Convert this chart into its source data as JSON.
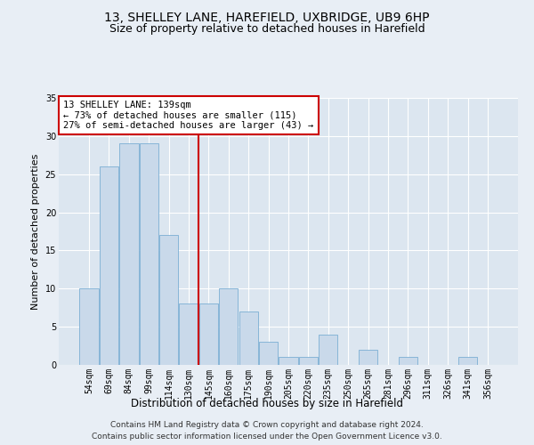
{
  "title": "13, SHELLEY LANE, HAREFIELD, UXBRIDGE, UB9 6HP",
  "subtitle": "Size of property relative to detached houses in Harefield",
  "xlabel": "Distribution of detached houses by size in Harefield",
  "ylabel": "Number of detached properties",
  "bar_labels": [
    "54sqm",
    "69sqm",
    "84sqm",
    "99sqm",
    "114sqm",
    "130sqm",
    "145sqm",
    "160sqm",
    "175sqm",
    "190sqm",
    "205sqm",
    "220sqm",
    "235sqm",
    "250sqm",
    "265sqm",
    "281sqm",
    "296sqm",
    "311sqm",
    "326sqm",
    "341sqm",
    "356sqm"
  ],
  "bar_values": [
    10,
    26,
    29,
    29,
    17,
    8,
    8,
    10,
    7,
    3,
    1,
    1,
    4,
    0,
    2,
    0,
    1,
    0,
    0,
    1,
    0
  ],
  "bar_color": "#c9d9ea",
  "bar_edgecolor": "#7bafd4",
  "vline_x": 5.5,
  "vline_color": "#cc0000",
  "annotation_text": "13 SHELLEY LANE: 139sqm\n← 73% of detached houses are smaller (115)\n27% of semi-detached houses are larger (43) →",
  "annotation_box_color": "#ffffff",
  "annotation_box_edgecolor": "#cc0000",
  "ylim": [
    0,
    35
  ],
  "yticks": [
    0,
    5,
    10,
    15,
    20,
    25,
    30,
    35
  ],
  "bg_color": "#e8eef5",
  "plot_bg_color": "#dce6f0",
  "footer": "Contains HM Land Registry data © Crown copyright and database right 2024.\nContains public sector information licensed under the Open Government Licence v3.0.",
  "title_fontsize": 10,
  "subtitle_fontsize": 9,
  "xlabel_fontsize": 8.5,
  "ylabel_fontsize": 8,
  "tick_fontsize": 7,
  "footer_fontsize": 6.5,
  "annotation_fontsize": 7.5
}
